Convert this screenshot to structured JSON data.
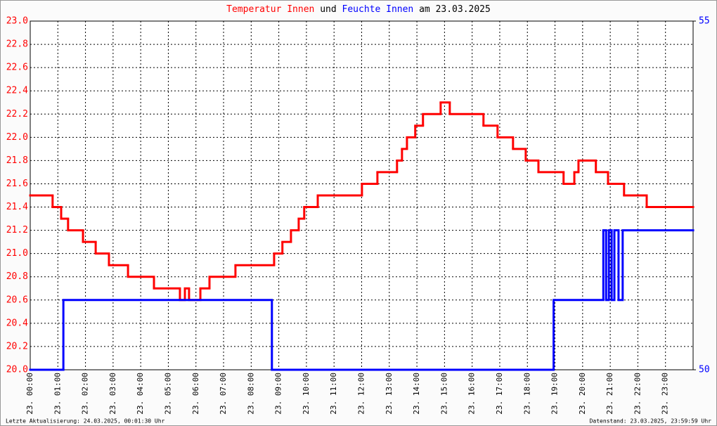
{
  "chart_data": {
    "type": "step",
    "title_connector": "und",
    "title_suffix": "am 23.03.2025",
    "footer_left": "Letzte Aktualisierung: 24.03.2025, 00:01:30 Uhr",
    "footer_right": "Datenstand: 23.03.2025, 23:59:59 Uhr",
    "grid": true,
    "xlim": [
      0,
      24
    ],
    "xticks": [
      {
        "value": 0,
        "label": "23. 00:00"
      },
      {
        "value": 1,
        "label": "23. 01:00"
      },
      {
        "value": 2,
        "label": "23. 02:00"
      },
      {
        "value": 3,
        "label": "23. 03:00"
      },
      {
        "value": 4,
        "label": "23. 04:00"
      },
      {
        "value": 5,
        "label": "23. 05:00"
      },
      {
        "value": 6,
        "label": "23. 06:00"
      },
      {
        "value": 7,
        "label": "23. 07:00"
      },
      {
        "value": 8,
        "label": "23. 08:00"
      },
      {
        "value": 9,
        "label": "23. 09:00"
      },
      {
        "value": 10,
        "label": "23. 10:00"
      },
      {
        "value": 11,
        "label": "23. 11:00"
      },
      {
        "value": 12,
        "label": "23. 12:00"
      },
      {
        "value": 13,
        "label": "23. 13:00"
      },
      {
        "value": 14,
        "label": "23. 14:00"
      },
      {
        "value": 15,
        "label": "23. 15:00"
      },
      {
        "value": 16,
        "label": "23. 16:00"
      },
      {
        "value": 17,
        "label": "23. 17:00"
      },
      {
        "value": 18,
        "label": "23. 18:00"
      },
      {
        "value": 19,
        "label": "23. 19:00"
      },
      {
        "value": 20,
        "label": "23. 20:00"
      },
      {
        "value": 21,
        "label": "23. 21:00"
      },
      {
        "value": 22,
        "label": "23. 22:00"
      },
      {
        "value": 23,
        "label": "23. 23:00"
      }
    ],
    "ylim": [
      20,
      23
    ],
    "yticks": [
      {
        "value": 20,
        "label": "20.0"
      },
      20.2,
      20.4,
      20.6,
      20.8,
      {
        "value": 21,
        "label": "21.0"
      },
      21.2,
      21.4,
      21.6,
      21.8,
      {
        "value": 22,
        "label": "22.0"
      },
      22.2,
      22.4,
      22.6,
      22.8,
      {
        "value": 23,
        "label": "23.0"
      }
    ],
    "y2lim": [
      50,
      55
    ],
    "y2ticks": [
      50,
      55
    ],
    "series": [
      {
        "name": "Temperatur Innen",
        "color": "#ff0000",
        "axis": "y",
        "x": [
          0,
          0.81,
          1.12,
          1.37,
          1.91,
          2.37,
          2.85,
          3.54,
          4.48,
          5.42,
          5.6,
          5.75,
          6.16,
          6.49,
          7.43,
          8.83,
          9.13,
          9.44,
          9.72,
          9.92,
          10.41,
          12.01,
          12.57,
          13.28,
          13.46,
          13.64,
          13.94,
          14.22,
          14.86,
          15.19,
          16.41,
          16.92,
          17.48,
          17.94,
          18.4,
          19.31,
          19.7,
          19.85,
          20.48,
          20.92,
          21.5,
          22.32
        ],
        "values": [
          21.5,
          21.4,
          21.3,
          21.2,
          21.1,
          21.0,
          20.9,
          20.8,
          20.7,
          20.6,
          20.7,
          20.6,
          20.7,
          20.8,
          20.9,
          21.0,
          21.1,
          21.2,
          21.3,
          21.4,
          21.5,
          21.6,
          21.7,
          21.8,
          21.9,
          22.0,
          22.1,
          22.2,
          22.3,
          22.2,
          22.1,
          22.0,
          21.9,
          21.8,
          21.7,
          21.6,
          21.7,
          21.8,
          21.7,
          21.6,
          21.5,
          21.4
        ]
      },
      {
        "name": "Feuchte Innen",
        "color": "#0000ff",
        "axis": "y2",
        "x": [
          0,
          1.2,
          8.75,
          18.95,
          20.75,
          20.85,
          20.95,
          21.05,
          21.15,
          21.3,
          21.45
        ],
        "values": [
          50,
          51,
          50,
          51,
          52,
          51,
          52,
          51,
          52,
          51,
          52
        ]
      }
    ]
  }
}
